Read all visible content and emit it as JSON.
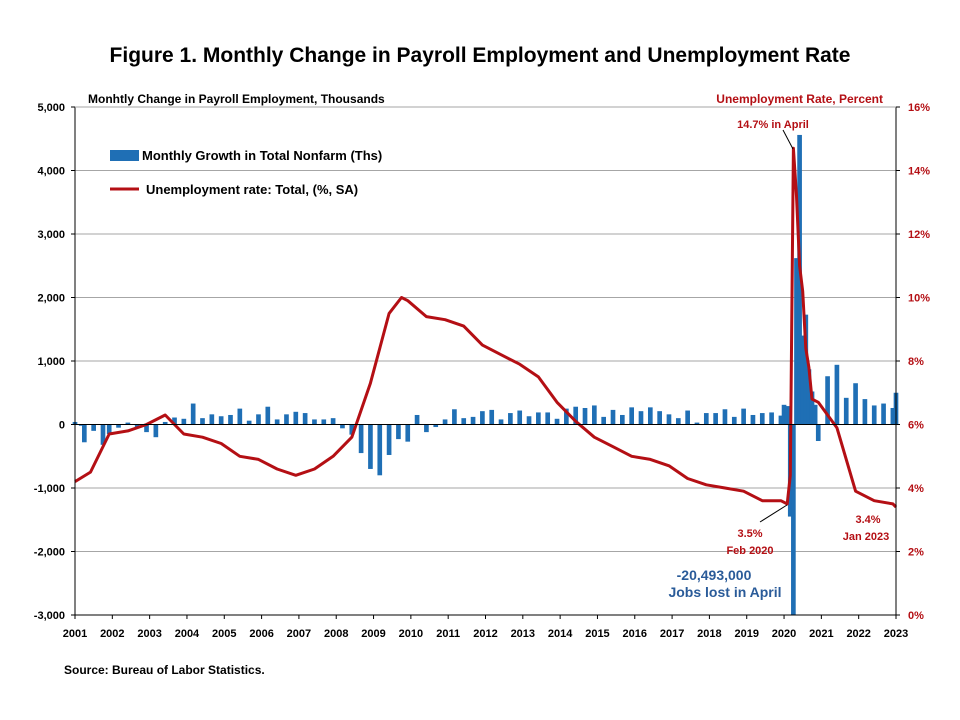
{
  "title": "Figure 1. Monthly Change in Payroll Employment and Unemployment Rate",
  "source": "Source: Bureau of Labor Statistics.",
  "colors": {
    "bar": "#1f6fb5",
    "line": "#b40f14",
    "grid": "#a6a6a6",
    "axis": "#000000",
    "right_axis_text": "#b40f14",
    "annotation_blue": "#2a5b99"
  },
  "chart_data": {
    "type": "bar+line",
    "left_axis": {
      "label": "Monhtly Change in Payroll Employment, Thousands",
      "ylim": [
        -3000,
        5000
      ],
      "ticks": [
        "-3,000",
        "-2,000",
        "-1,000",
        "0",
        "1,000",
        "2,000",
        "3,000",
        "4,000",
        "5,000"
      ]
    },
    "right_axis": {
      "label": "Unemployment Rate, Percent",
      "ylim": [
        0,
        16
      ],
      "ticks": [
        "0%",
        "2%",
        "4%",
        "6%",
        "8%",
        "10%",
        "12%",
        "14%",
        "16%"
      ]
    },
    "x_axis": {
      "ticks": [
        "2001",
        "2002",
        "2003",
        "2004",
        "2005",
        "2006",
        "2007",
        "2008",
        "2009",
        "2010",
        "2011",
        "2012",
        "2013",
        "2014",
        "2015",
        "2016",
        "2017",
        "2018",
        "2019",
        "2020",
        "2021",
        "2022",
        "2023"
      ]
    },
    "grid": true,
    "legend": {
      "placement": "top-left",
      "entries": [
        "Monthly Growth in Total Nonfarm (Ths)",
        "Unemployment rate: Total, (%, SA)"
      ]
    },
    "bar_series": {
      "name": "Monthly Growth in Total Nonfarm (Ths)",
      "points": [
        [
          "2001-01",
          40
        ],
        [
          "2001-03",
          -20
        ],
        [
          "2001-04",
          -280
        ],
        [
          "2001-07",
          -100
        ],
        [
          "2001-10",
          -320
        ],
        [
          "2001-12",
          -150
        ],
        [
          "2002-03",
          -50
        ],
        [
          "2002-06",
          30
        ],
        [
          "2002-09",
          -60
        ],
        [
          "2002-12",
          -120
        ],
        [
          "2003-03",
          -200
        ],
        [
          "2003-06",
          40
        ],
        [
          "2003-09",
          110
        ],
        [
          "2003-12",
          90
        ],
        [
          "2004-03",
          330
        ],
        [
          "2004-06",
          100
        ],
        [
          "2004-09",
          160
        ],
        [
          "2004-12",
          130
        ],
        [
          "2005-03",
          150
        ],
        [
          "2005-06",
          250
        ],
        [
          "2005-09",
          60
        ],
        [
          "2005-12",
          160
        ],
        [
          "2006-03",
          280
        ],
        [
          "2006-06",
          80
        ],
        [
          "2006-09",
          160
        ],
        [
          "2006-12",
          200
        ],
        [
          "2007-03",
          180
        ],
        [
          "2007-06",
          80
        ],
        [
          "2007-09",
          80
        ],
        [
          "2007-12",
          100
        ],
        [
          "2008-03",
          -60
        ],
        [
          "2008-06",
          -160
        ],
        [
          "2008-09",
          -450
        ],
        [
          "2008-12",
          -700
        ],
        [
          "2009-03",
          -800
        ],
        [
          "2009-06",
          -480
        ],
        [
          "2009-09",
          -230
        ],
        [
          "2009-12",
          -270
        ],
        [
          "2010-03",
          150
        ],
        [
          "2010-06",
          -120
        ],
        [
          "2010-09",
          -40
        ],
        [
          "2010-12",
          80
        ],
        [
          "2011-03",
          240
        ],
        [
          "2011-06",
          100
        ],
        [
          "2011-09",
          120
        ],
        [
          "2011-12",
          210
        ],
        [
          "2012-03",
          230
        ],
        [
          "2012-06",
          80
        ],
        [
          "2012-09",
          180
        ],
        [
          "2012-12",
          220
        ],
        [
          "2013-03",
          130
        ],
        [
          "2013-06",
          190
        ],
        [
          "2013-09",
          190
        ],
        [
          "2013-12",
          90
        ],
        [
          "2014-03",
          250
        ],
        [
          "2014-06",
          280
        ],
        [
          "2014-09",
          260
        ],
        [
          "2014-12",
          300
        ],
        [
          "2015-03",
          120
        ],
        [
          "2015-06",
          230
        ],
        [
          "2015-09",
          150
        ],
        [
          "2015-12",
          270
        ],
        [
          "2016-03",
          210
        ],
        [
          "2016-06",
          270
        ],
        [
          "2016-09",
          210
        ],
        [
          "2016-12",
          160
        ],
        [
          "2017-03",
          100
        ],
        [
          "2017-06",
          220
        ],
        [
          "2017-09",
          30
        ],
        [
          "2017-12",
          180
        ],
        [
          "2018-03",
          180
        ],
        [
          "2018-06",
          240
        ],
        [
          "2018-09",
          120
        ],
        [
          "2018-12",
          250
        ],
        [
          "2019-03",
          150
        ],
        [
          "2019-06",
          180
        ],
        [
          "2019-09",
          190
        ],
        [
          "2019-12",
          140
        ],
        [
          "2020-01",
          310
        ],
        [
          "2020-02",
          290
        ],
        [
          "2020-03",
          -1450
        ],
        [
          "2020-04",
          -20493
        ],
        [
          "2020-05",
          2620
        ],
        [
          "2020-06",
          4560
        ],
        [
          "2020-07",
          1400
        ],
        [
          "2020-08",
          1730
        ],
        [
          "2020-09",
          870
        ],
        [
          "2020-10",
          520
        ],
        [
          "2020-11",
          310
        ],
        [
          "2020-12",
          -260
        ],
        [
          "2021-03",
          760
        ],
        [
          "2021-06",
          940
        ],
        [
          "2021-09",
          420
        ],
        [
          "2021-12",
          650
        ],
        [
          "2022-03",
          400
        ],
        [
          "2022-06",
          300
        ],
        [
          "2022-09",
          330
        ],
        [
          "2022-12",
          260
        ],
        [
          "2023-01",
          500
        ]
      ]
    },
    "line_series": {
      "name": "Unemployment rate: Total, (%, SA)",
      "points": [
        [
          "2001-01",
          4.2
        ],
        [
          "2001-06",
          4.5
        ],
        [
          "2001-12",
          5.7
        ],
        [
          "2002-06",
          5.8
        ],
        [
          "2002-12",
          6.0
        ],
        [
          "2003-06",
          6.3
        ],
        [
          "2003-12",
          5.7
        ],
        [
          "2004-06",
          5.6
        ],
        [
          "2004-12",
          5.4
        ],
        [
          "2005-06",
          5.0
        ],
        [
          "2005-12",
          4.9
        ],
        [
          "2006-06",
          4.6
        ],
        [
          "2006-12",
          4.4
        ],
        [
          "2007-06",
          4.6
        ],
        [
          "2007-12",
          5.0
        ],
        [
          "2008-06",
          5.6
        ],
        [
          "2008-12",
          7.3
        ],
        [
          "2009-06",
          9.5
        ],
        [
          "2009-10",
          10.0
        ],
        [
          "2009-12",
          9.9
        ],
        [
          "2010-06",
          9.4
        ],
        [
          "2010-12",
          9.3
        ],
        [
          "2011-06",
          9.1
        ],
        [
          "2011-12",
          8.5
        ],
        [
          "2012-06",
          8.2
        ],
        [
          "2012-12",
          7.9
        ],
        [
          "2013-06",
          7.5
        ],
        [
          "2013-12",
          6.7
        ],
        [
          "2014-06",
          6.1
        ],
        [
          "2014-12",
          5.6
        ],
        [
          "2015-06",
          5.3
        ],
        [
          "2015-12",
          5.0
        ],
        [
          "2016-06",
          4.9
        ],
        [
          "2016-12",
          4.7
        ],
        [
          "2017-06",
          4.3
        ],
        [
          "2017-12",
          4.1
        ],
        [
          "2018-06",
          4.0
        ],
        [
          "2018-12",
          3.9
        ],
        [
          "2019-06",
          3.6
        ],
        [
          "2019-12",
          3.6
        ],
        [
          "2020-02",
          3.5
        ],
        [
          "2020-03",
          4.4
        ],
        [
          "2020-04",
          14.7
        ],
        [
          "2020-05",
          13.2
        ],
        [
          "2020-06",
          11.0
        ],
        [
          "2020-07",
          10.2
        ],
        [
          "2020-08",
          8.4
        ],
        [
          "2020-09",
          7.8
        ],
        [
          "2020-10",
          6.8
        ],
        [
          "2020-12",
          6.7
        ],
        [
          "2021-06",
          5.9
        ],
        [
          "2021-12",
          3.9
        ],
        [
          "2022-06",
          3.6
        ],
        [
          "2022-12",
          3.5
        ],
        [
          "2023-01",
          3.4
        ]
      ]
    },
    "annotations": [
      {
        "text": "14.7% in April"
      },
      {
        "text": "3.5%",
        "text2": "Feb 2020"
      },
      {
        "text": "3.4%",
        "text2": "Jan 2023"
      },
      {
        "text": "-20,493,000",
        "text2": "Jobs lost in April"
      }
    ]
  }
}
